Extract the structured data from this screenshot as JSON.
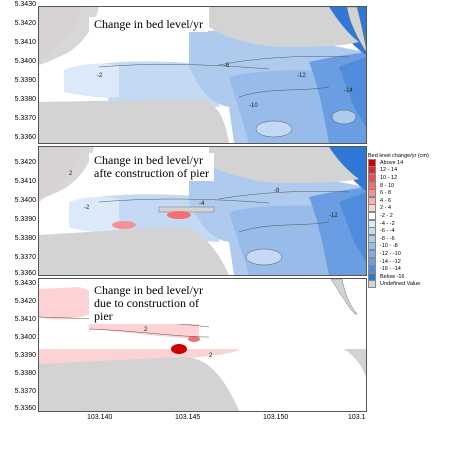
{
  "panels": [
    {
      "title": "Change in bed level/yr",
      "y_ticks": [
        "5.3430",
        "5.3420",
        "5.3410",
        "5.3400",
        "5.3390",
        "5.3380",
        "5.3370",
        "5.3360"
      ]
    },
    {
      "title": "Change in bed level/yr afte construction of pier",
      "title_line1": "Change in bed level/yr",
      "title_line2": "afte construction of pier",
      "y_ticks": [
        "5.3420",
        "5.3410",
        "5.3400",
        "5.3390",
        "5.3380",
        "5.3370",
        "5.3360"
      ]
    },
    {
      "title": "Change in bed level/yr due to construction of pier",
      "title_line1": "Change in bed level/yr",
      "title_line2": "due to construction of",
      "title_line3": "pier",
      "y_ticks": [
        "5.3430",
        "5.3420",
        "5.3410",
        "5.3400",
        "5.3390",
        "5.3380",
        "5.3370",
        "5.3360"
      ]
    }
  ],
  "x_ticks": [
    "103.140",
    "103.145",
    "103.150",
    "103.1"
  ],
  "legend": {
    "title": "Bed level change/yr (cm)",
    "items": [
      {
        "label": "Above  14",
        "color": "#cc0000"
      },
      {
        "label": "12 -  14",
        "color": "#e0262b"
      },
      {
        "label": "10 -  12",
        "color": "#ee4a4f"
      },
      {
        "label": "8 -  10",
        "color": "#f46e72"
      },
      {
        "label": "6 -  8",
        "color": "#f79195"
      },
      {
        "label": "4 -  6",
        "color": "#f9b1b4"
      },
      {
        "label": "2 -  4",
        "color": "#fcd2d4"
      },
      {
        "label": "-2 -  2",
        "color": "#ffffff"
      },
      {
        "label": "-4 -  -2",
        "color": "#dbe9f8"
      },
      {
        "label": "-6 -  -4",
        "color": "#c4daf4"
      },
      {
        "label": "-8 -  -6",
        "color": "#aecbef"
      },
      {
        "label": "-10 -  -8",
        "color": "#97bcea"
      },
      {
        "label": "-12 - -10",
        "color": "#80ace6"
      },
      {
        "label": "-14 - -12",
        "color": "#6a9de1"
      },
      {
        "label": "-16 - -14",
        "color": "#4f8ddc"
      },
      {
        "label": "Below -16",
        "color": "#2f78d6"
      },
      {
        "label": "Undefined Value",
        "color": "#d3d3d3"
      }
    ]
  },
  "contour_labels": [
    "-2",
    "-4",
    "-6",
    "-8",
    "-10",
    "-12",
    "-14",
    "2",
    "4"
  ]
}
